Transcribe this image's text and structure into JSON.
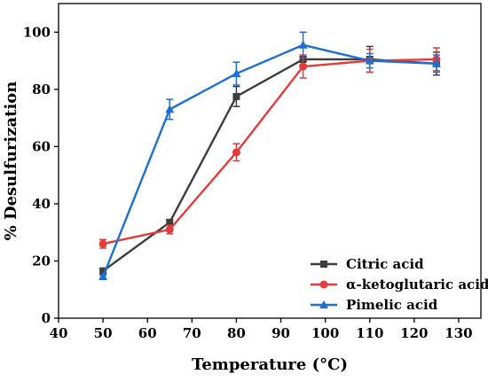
{
  "chart_data": {
    "type": "line",
    "title": "",
    "xlabel": "Temperature (°C)",
    "ylabel": "% Desulfurization",
    "xlim": [
      40,
      135
    ],
    "ylim": [
      0,
      110
    ],
    "xticks": [
      40,
      50,
      60,
      70,
      80,
      90,
      100,
      110,
      120,
      130
    ],
    "yticks": [
      0,
      20,
      40,
      60,
      80,
      100
    ],
    "x": [
      50,
      65,
      80,
      95,
      110,
      125
    ],
    "legend_position": "lower-right",
    "grid": false,
    "series": [
      {
        "name": "Citric acid",
        "color": "#3d3d3d",
        "marker": "square",
        "values": [
          16.5,
          33.5,
          77.5,
          90.5,
          90.5,
          89.0
        ],
        "errors": [
          1.0,
          1.0,
          3.5,
          1.0,
          4.5,
          4.0
        ]
      },
      {
        "name": "α-ketoglutaric acid",
        "color": "#e23b3b",
        "marker": "circle",
        "values": [
          26.0,
          31.0,
          58.0,
          88.0,
          90.0,
          90.5
        ],
        "errors": [
          1.5,
          1.5,
          3.0,
          4.0,
          4.0,
          4.0
        ]
      },
      {
        "name": "Pimelic acid",
        "color": "#1f6fd1",
        "marker": "triangle",
        "values": [
          14.5,
          73.0,
          85.5,
          95.5,
          90.0,
          89.0
        ],
        "errors": [
          0.5,
          3.5,
          4.0,
          4.5,
          2.5,
          3.0
        ]
      }
    ]
  }
}
